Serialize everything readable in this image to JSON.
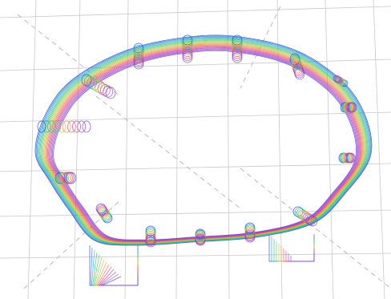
{
  "scene": {
    "background": "#ffffff",
    "grid_color": "#c9c9c9",
    "diagonal_color": "#b3b3b3",
    "palette": [
      "#2b4bd6",
      "#25b6d9",
      "#37c56b",
      "#b7cf3a",
      "#ef8a3a",
      "#e0407a",
      "#b040d0",
      "#6a4ee6"
    ],
    "shell_layers": 20,
    "pin_count": 15,
    "support_count": 2
  }
}
